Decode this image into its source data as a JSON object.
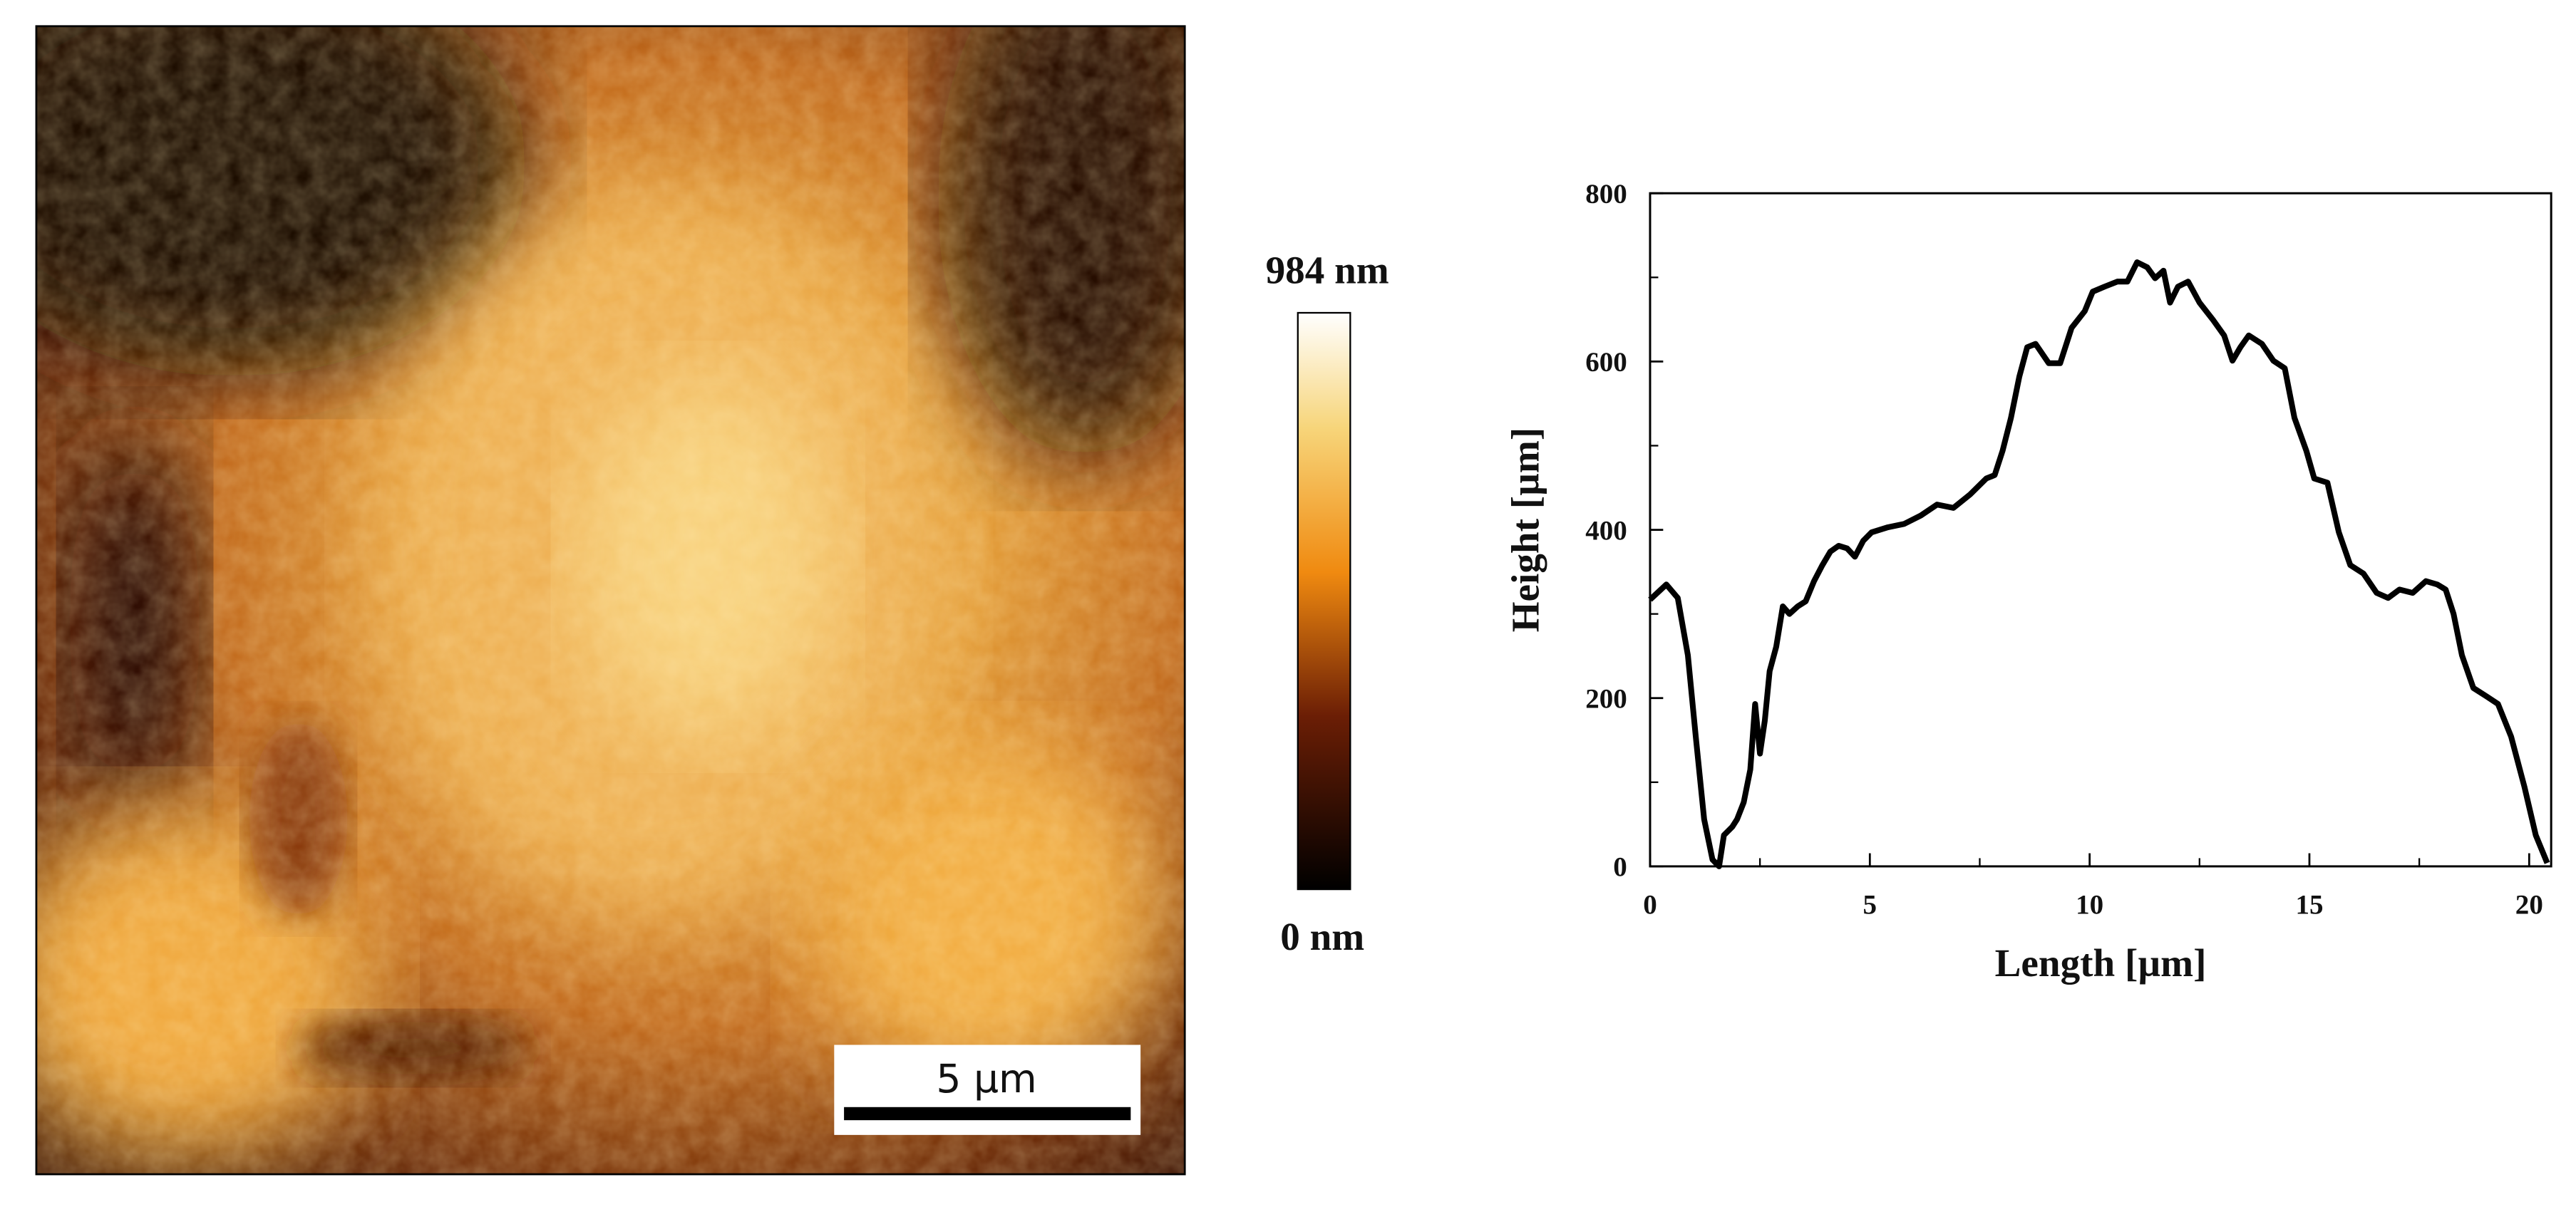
{
  "image": {
    "scale_bar": "5 µm",
    "colorbar_max": "984 nm",
    "colorbar_min": "0 nm"
  },
  "chart_data": {
    "type": "line",
    "x_label": "Length [µm]",
    "y_label": "Height [µm]",
    "x": [
      0,
      0.37,
      0.63,
      0.86,
      1.04,
      1.23,
      1.42,
      1.57,
      1.68,
      1.87,
      1.98,
      2.13,
      2.28,
      2.39,
      2.5,
      2.61,
      2.72,
      2.87,
      3.02,
      3.17,
      3.36,
      3.54,
      3.73,
      3.92,
      4.1,
      4.29,
      4.48,
      4.66,
      4.85,
      5.04,
      5.41,
      5.78,
      6.16,
      6.53,
      6.9,
      7.28,
      7.65,
      7.84,
      8.02,
      8.21,
      8.4,
      8.58,
      8.77,
      9.07,
      9.33,
      9.59,
      9.89,
      10.07,
      10.34,
      10.63,
      10.86,
      11.08,
      11.31,
      11.49,
      11.68,
      11.83,
      12.01,
      12.24,
      12.5,
      12.8,
      13.06,
      13.25,
      13.43,
      13.62,
      13.92,
      14.18,
      14.44,
      14.66,
      14.93,
      15.11,
      15.41,
      15.67,
      15.93,
      16.23,
      16.53,
      16.79,
      17.05,
      17.35,
      17.65,
      17.91,
      18.1,
      18.28,
      18.47,
      18.73,
      19.03,
      19.29,
      19.59,
      19.89,
      20.15,
      20.41
    ],
    "values": [
      317,
      335,
      319,
      251,
      154,
      56,
      8,
      0,
      37,
      47,
      56,
      76,
      115,
      193,
      134,
      173,
      232,
      261,
      309,
      300,
      309,
      315,
      339,
      358,
      374,
      381,
      378,
      368,
      387,
      397,
      403,
      407,
      417,
      430,
      426,
      442,
      461,
      465,
      494,
      533,
      582,
      617,
      621,
      598,
      598,
      640,
      660,
      683,
      689,
      695,
      695,
      718,
      712,
      699,
      708,
      670,
      689,
      695,
      670,
      650,
      631,
      601,
      617,
      631,
      621,
      601,
      592,
      533,
      494,
      461,
      456,
      397,
      358,
      348,
      325,
      319,
      329,
      325,
      339,
      335,
      329,
      300,
      251,
      212,
      202,
      193,
      154,
      95,
      37,
      4
    ],
    "color": "#000000",
    "xlim": [
      0,
      20.5
    ],
    "ylim": [
      0,
      800
    ],
    "xticks": [
      0,
      5,
      10,
      15,
      20
    ],
    "yticks": [
      0,
      200,
      400,
      600,
      800
    ],
    "xminorticks": [
      2.5,
      7.5,
      12.5,
      17.5
    ],
    "yminorticks": [
      100,
      300,
      500,
      700
    ]
  }
}
